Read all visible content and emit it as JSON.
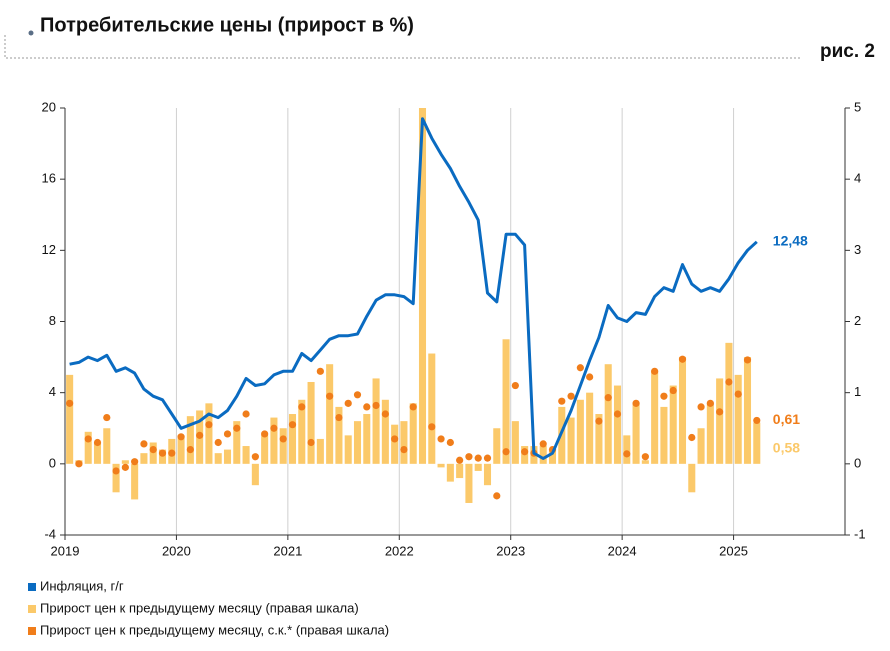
{
  "chart_data": {
    "type": "combo",
    "title": "Потребительские цены (прирост в %)",
    "figure_label": "рис. 2",
    "categories": [
      "2019",
      null,
      null,
      null,
      null,
      null,
      null,
      null,
      null,
      null,
      null,
      null,
      "2020",
      null,
      null,
      null,
      null,
      null,
      null,
      null,
      null,
      null,
      null,
      null,
      "2021",
      null,
      null,
      null,
      null,
      null,
      null,
      null,
      null,
      null,
      null,
      null,
      "2022",
      null,
      null,
      null,
      null,
      null,
      null,
      null,
      null,
      null,
      null,
      null,
      "2023",
      null,
      null,
      null,
      null,
      null,
      null,
      null,
      null,
      null,
      null,
      null,
      "2024",
      null,
      null,
      null,
      null,
      null,
      null,
      null,
      null,
      null,
      null,
      null,
      "2025",
      null,
      null,
      null,
      null,
      null,
      null,
      null,
      null,
      null,
      null,
      null
    ],
    "ylim": [
      -4,
      20
    ],
    "yticks": [
      -4,
      0,
      4,
      8,
      12,
      16,
      20
    ],
    "y2lim": [
      -1,
      5
    ],
    "y2ticks": [
      -1,
      0,
      1,
      2,
      3,
      4,
      5
    ],
    "grid": true,
    "legend_position": "bottom",
    "series": [
      {
        "name": "Прирост цен к предыдущему месяцу (правая шкала)",
        "type": "bar",
        "axis": "y2",
        "color": "#fbc96a",
        "values": [
          1.25,
          0.05,
          0.45,
          0.3,
          0.5,
          -0.4,
          0.05,
          -0.5,
          0.15,
          0.3,
          0.2,
          0.35,
          0.4,
          0.67,
          0.75,
          0.85,
          0.15,
          0.2,
          0.6,
          0.25,
          -0.3,
          0.4,
          0.65,
          0.5,
          0.7,
          0.9,
          1.15,
          0.35,
          1.4,
          0.8,
          0.4,
          0.6,
          0.7,
          1.2,
          0.9,
          0.55,
          0.6,
          0.85,
          5,
          1.55,
          -0.05,
          -0.25,
          -0.2,
          -0.55,
          -0.1,
          -0.3,
          0.5,
          1.75,
          0.6,
          0.25,
          0.25,
          0.25,
          0.2,
          0.8,
          0.65,
          0.9,
          1.0,
          0.7,
          1.4,
          1.1,
          0.4,
          0.85,
          0.05,
          1.3,
          0.8,
          1.1,
          1.5,
          -0.4,
          0.5,
          0.85,
          1.2,
          1.7,
          1.25,
          1.5,
          0.58,
          null,
          null,
          null,
          null,
          null,
          null,
          null,
          null,
          null
        ],
        "value_labels": [
          null,
          null,
          null,
          null,
          null,
          null,
          null,
          null,
          null,
          null,
          null,
          null,
          null,
          null,
          null,
          null,
          null,
          null,
          null,
          null,
          null,
          null,
          null,
          null,
          null,
          null,
          null,
          null,
          null,
          null,
          null,
          null,
          null,
          null,
          null,
          null,
          null,
          null,
          null,
          null,
          null,
          null,
          null,
          null,
          null,
          null,
          null,
          null,
          null,
          null,
          null,
          null,
          null,
          null,
          null,
          null,
          null,
          null,
          null,
          null,
          null,
          null,
          null,
          null,
          null,
          null,
          null,
          null,
          null,
          null,
          null,
          null,
          null,
          null,
          "0,58",
          null,
          null,
          null,
          null,
          null,
          null,
          null,
          null,
          null
        ]
      },
      {
        "name": "Прирост цен к предыдущему месяцу, с.к.* (правая шкала)",
        "type": "scatter",
        "axis": "y2",
        "color": "#f07d1a",
        "values": [
          0.85,
          0.0,
          0.35,
          0.3,
          0.65,
          -0.1,
          -0.05,
          0.03,
          0.28,
          0.2,
          0.15,
          0.15,
          0.38,
          0.2,
          0.4,
          0.55,
          0.3,
          0.42,
          0.5,
          0.7,
          0.1,
          0.42,
          0.5,
          0.35,
          0.55,
          0.8,
          0.3,
          1.3,
          0.95,
          0.65,
          0.85,
          0.97,
          0.8,
          0.82,
          0.7,
          0.35,
          0.2,
          0.8,
          null,
          0.52,
          0.35,
          0.3,
          0.05,
          0.1,
          0.08,
          0.08,
          -0.45,
          0.17,
          1.1,
          0.17,
          0.15,
          0.28,
          0.2,
          0.88,
          0.95,
          1.35,
          1.22,
          0.6,
          0.93,
          0.7,
          0.14,
          0.85,
          0.1,
          1.3,
          0.95,
          1.03,
          1.47,
          0.37,
          0.8,
          0.85,
          0.73,
          1.15,
          0.98,
          1.46,
          0.61,
          null,
          null,
          null,
          null,
          null,
          null,
          null,
          null,
          null
        ],
        "value_labels": [
          null,
          null,
          null,
          null,
          null,
          null,
          null,
          null,
          null,
          null,
          null,
          null,
          null,
          null,
          null,
          null,
          null,
          null,
          null,
          null,
          null,
          null,
          null,
          null,
          null,
          null,
          null,
          null,
          null,
          null,
          null,
          null,
          null,
          null,
          null,
          null,
          null,
          null,
          null,
          null,
          null,
          null,
          null,
          null,
          null,
          null,
          null,
          null,
          null,
          null,
          null,
          null,
          null,
          null,
          null,
          null,
          null,
          null,
          null,
          null,
          null,
          null,
          null,
          null,
          null,
          null,
          null,
          null,
          null,
          null,
          null,
          null,
          null,
          null,
          "0,61",
          null,
          null,
          null,
          null,
          null,
          null,
          null,
          null,
          null
        ]
      },
      {
        "name": "Инфляция, г/г",
        "type": "line",
        "axis": "y",
        "color": "#0a6bc1",
        "values": [
          5.6,
          5.7,
          6.0,
          5.8,
          6.1,
          5.2,
          5.4,
          5.1,
          4.2,
          3.8,
          3.6,
          2.8,
          2.0,
          2.2,
          2.4,
          2.8,
          2.6,
          3.0,
          3.8,
          4.8,
          4.4,
          4.5,
          5.0,
          5.2,
          5.2,
          6.2,
          5.8,
          6.4,
          7.0,
          7.2,
          7.2,
          7.3,
          8.3,
          9.2,
          9.5,
          9.5,
          9.4,
          9.0,
          19.4,
          18.3,
          17.4,
          16.6,
          15.6,
          14.7,
          13.7,
          9.6,
          9.1,
          12.9,
          12.9,
          12.3,
          0.6,
          0.3,
          0.6,
          1.8,
          3.0,
          4.4,
          5.8,
          7.1,
          8.9,
          8.2,
          8.0,
          8.5,
          8.4,
          9.4,
          9.9,
          9.7,
          11.2,
          10.1,
          9.7,
          9.9,
          9.7,
          10.4,
          11.3,
          12.0,
          12.48,
          null,
          null,
          null,
          null,
          null,
          null,
          null,
          null,
          null
        ],
        "value_labels": [
          null,
          null,
          null,
          null,
          null,
          null,
          null,
          null,
          null,
          null,
          null,
          null,
          null,
          null,
          null,
          null,
          null,
          null,
          null,
          null,
          null,
          null,
          null,
          null,
          null,
          null,
          null,
          null,
          null,
          null,
          null,
          null,
          null,
          null,
          null,
          null,
          null,
          null,
          null,
          null,
          null,
          null,
          null,
          null,
          null,
          null,
          null,
          null,
          null,
          null,
          null,
          null,
          null,
          null,
          null,
          null,
          null,
          null,
          null,
          null,
          null,
          null,
          null,
          null,
          null,
          null,
          null,
          null,
          null,
          null,
          null,
          null,
          null,
          null,
          "12,48",
          null,
          null,
          null,
          null,
          null,
          null,
          null,
          null,
          null
        ]
      }
    ]
  }
}
